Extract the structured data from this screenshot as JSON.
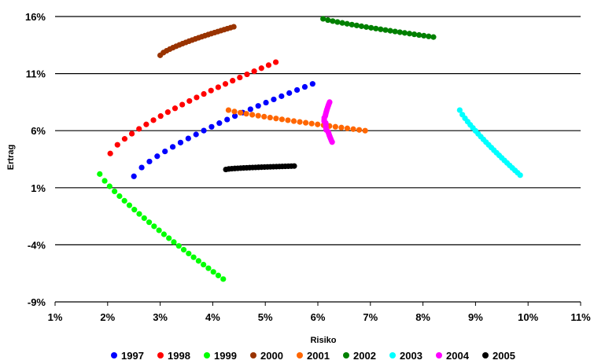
{
  "chart_data": {
    "type": "scatter",
    "title": "",
    "xlabel": "Risiko",
    "ylabel": "Ertrag",
    "xlim": [
      1,
      11
    ],
    "ylim": [
      -9,
      16
    ],
    "x_ticks": [
      1,
      2,
      3,
      4,
      5,
      6,
      7,
      8,
      9,
      10,
      11
    ],
    "y_ticks": [
      -9,
      -4,
      1,
      6,
      11,
      16
    ],
    "x_tick_labels": [
      "1%",
      "2%",
      "3%",
      "4%",
      "5%",
      "6%",
      "7%",
      "8%",
      "9%",
      "10%",
      "11%"
    ],
    "y_tick_labels": [
      "-9%",
      "-4%",
      "1%",
      "6%",
      "11%",
      "16%"
    ],
    "grid": "horizontal",
    "legend_position": "bottom",
    "series": [
      {
        "name": "1997",
        "color": "#0000ff",
        "x_range": [
          2.5,
          5.9
        ],
        "y_range": [
          2.0,
          10.1
        ],
        "curve": "concave",
        "n": 24
      },
      {
        "name": "1998",
        "color": "#ff0000",
        "x_range": [
          2.05,
          5.2
        ],
        "y_range": [
          4.0,
          12.0
        ],
        "curve": "concave",
        "n": 24
      },
      {
        "name": "1999",
        "color": "#00ff00",
        "x_range": [
          1.85,
          4.2
        ],
        "y_range": [
          2.2,
          -7.0
        ],
        "curve": "convex",
        "n": 26,
        "start_x": 1.85
      },
      {
        "name": "2000",
        "color": "#993300",
        "x_range": [
          3.0,
          4.4
        ],
        "y_range": [
          12.6,
          15.1
        ],
        "curve": "concave",
        "n": 24
      },
      {
        "name": "2001",
        "color": "#ff6600",
        "x_range": [
          4.3,
          6.9
        ],
        "y_range": [
          7.8,
          6.0
        ],
        "curve": "convex",
        "n": 24
      },
      {
        "name": "2002",
        "color": "#008000",
        "x_range": [
          6.1,
          8.2
        ],
        "y_range": [
          15.8,
          14.2
        ],
        "curve": "convex",
        "n": 24
      },
      {
        "name": "2003",
        "color": "#00ffff",
        "x_range": [
          8.7,
          9.85
        ],
        "y_range": [
          7.8,
          2.1
        ],
        "curve": "convex",
        "n": 24
      },
      {
        "name": "2004",
        "color": "#ff00ff",
        "x_range": [
          6.2,
          6.25
        ],
        "y_range": [
          5.0,
          8.5
        ],
        "curve": "vertical",
        "n": 24
      },
      {
        "name": "2005",
        "color": "#000000",
        "x_range": [
          4.25,
          5.55
        ],
        "y_range": [
          2.6,
          2.9
        ],
        "curve": "flat",
        "n": 24
      }
    ]
  }
}
